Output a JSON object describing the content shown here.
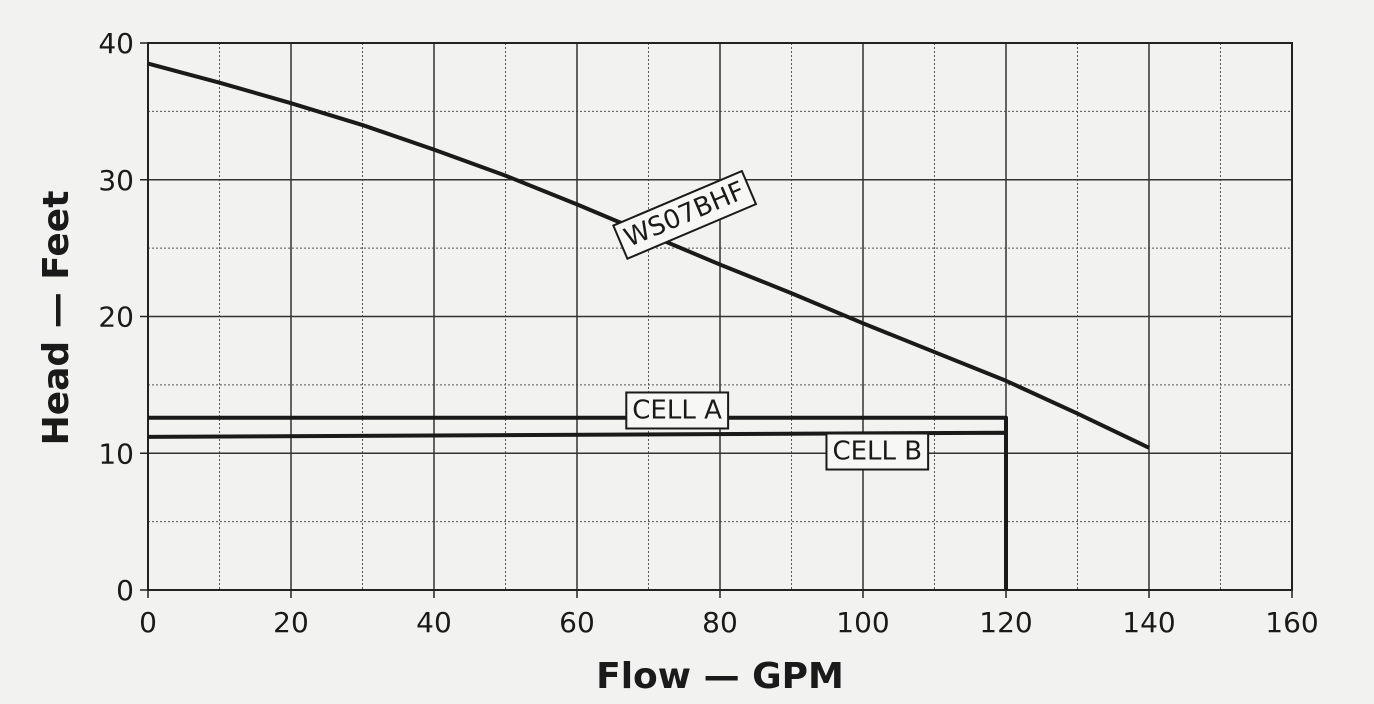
{
  "chart_data": {
    "type": "line",
    "title": "",
    "xlabel": "Flow  —  GPM",
    "ylabel": "Head  —  Feet",
    "xlim": [
      0,
      160
    ],
    "ylim": [
      0,
      40
    ],
    "x_ticks": [
      0,
      20,
      40,
      60,
      80,
      100,
      120,
      140,
      160
    ],
    "y_ticks": [
      0,
      10,
      20,
      30,
      40
    ],
    "x_minor_step": 10,
    "y_minor_step": 5,
    "grid": true,
    "series": [
      {
        "name": "WS07BHF",
        "x": [
          0,
          10,
          20,
          30,
          40,
          50,
          60,
          70,
          80,
          90,
          100,
          110,
          120,
          130,
          140
        ],
        "y": [
          38.5,
          37.1,
          35.6,
          34.0,
          32.2,
          30.3,
          28.2,
          26.0,
          23.8,
          21.7,
          19.5,
          17.4,
          15.3,
          12.9,
          10.4
        ],
        "color": "#1a1a1a"
      },
      {
        "name": "CELL A",
        "x": [
          0,
          120,
          120
        ],
        "y": [
          12.6,
          12.6,
          0
        ],
        "color": "#1a1a1a"
      },
      {
        "name": "CELL B",
        "x": [
          0,
          120,
          120
        ],
        "y": [
          11.2,
          11.5,
          0
        ],
        "color": "#1a1a1a"
      }
    ],
    "annotations": [
      {
        "text": "WS07BHF",
        "x": 75,
        "y": 27.5,
        "angle": -23
      },
      {
        "text": "CELL A",
        "x": 74,
        "y": 13.2
      },
      {
        "text": "CELL B",
        "x": 102,
        "y": 10.2
      }
    ]
  }
}
